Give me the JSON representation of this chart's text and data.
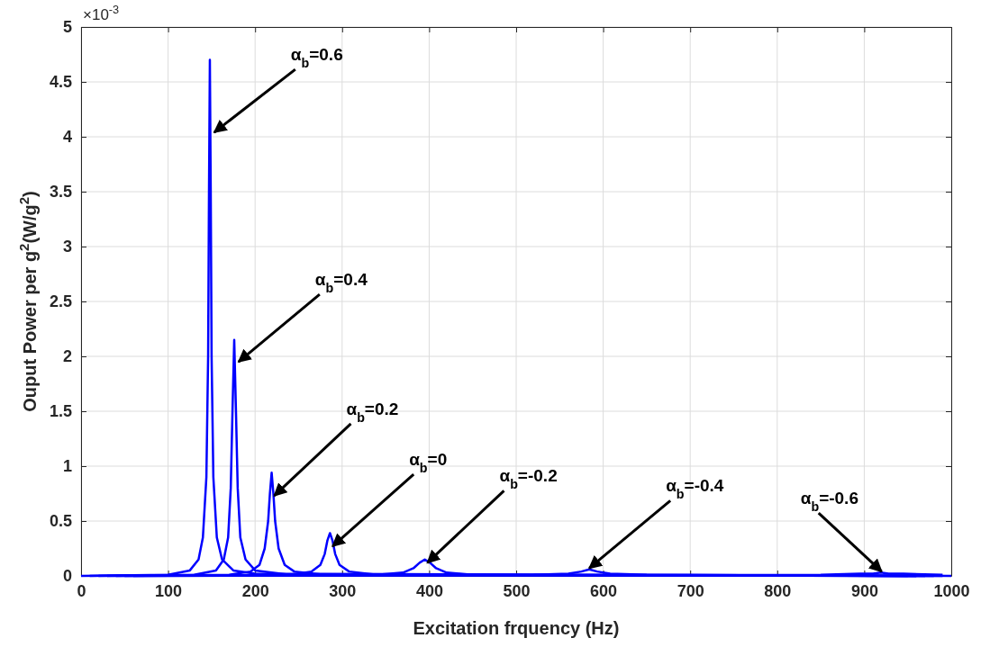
{
  "chart_data": {
    "type": "line",
    "xlabel": "Excitation frquency (Hz)",
    "ylabel": "Ouput Power per g$^{2}$(W/g$^{2}$)",
    "xlim": [
      0,
      1000
    ],
    "xticks": [
      0,
      100,
      200,
      300,
      400,
      500,
      600,
      700,
      800,
      900,
      1000
    ],
    "ylim": [
      0,
      5
    ],
    "yticks": [
      0,
      0.5,
      1,
      1.5,
      2,
      2.5,
      3,
      3.5,
      4,
      4.5,
      5
    ],
    "grid": true,
    "line_style": "solid",
    "series": [
      {
        "color": "#0000ff",
        "x": [
          0,
          100,
          125,
          135,
          140,
          144,
          146,
          147,
          148,
          149,
          150,
          152,
          156,
          162,
          175,
          200,
          1000
        ],
        "values": [
          0,
          0.01,
          0.05,
          0.15,
          0.35,
          0.9,
          2.0,
          3.5,
          4.7,
          3.5,
          2.0,
          0.9,
          0.35,
          0.15,
          0.05,
          0.02,
          0
        ]
      },
      {
        "color": "#0000ff",
        "x": [
          10,
          130,
          155,
          164,
          169,
          172,
          174,
          176,
          178,
          180,
          183,
          189,
          200,
          240,
          990
        ],
        "values": [
          0,
          0.01,
          0.05,
          0.15,
          0.35,
          0.8,
          1.5,
          2.15,
          1.5,
          0.8,
          0.35,
          0.15,
          0.05,
          0.01,
          0
        ]
      },
      {
        "color": "#0000ff",
        "x": [
          20,
          170,
          195,
          205,
          211,
          215,
          217,
          219,
          221,
          223,
          227,
          234,
          245,
          280,
          980
        ],
        "values": [
          0,
          0.01,
          0.04,
          0.1,
          0.25,
          0.5,
          0.75,
          0.94,
          0.75,
          0.5,
          0.25,
          0.1,
          0.04,
          0.01,
          0
        ]
      },
      {
        "color": "#0000ff",
        "x": [
          30,
          240,
          265,
          275,
          280,
          283,
          286,
          289,
          292,
          297,
          308,
          340,
          970
        ],
        "values": [
          0,
          0.01,
          0.04,
          0.1,
          0.2,
          0.32,
          0.39,
          0.32,
          0.2,
          0.1,
          0.04,
          0.01,
          0
        ]
      },
      {
        "color": "#0000ff",
        "x": [
          40,
          340,
          370,
          382,
          389,
          395,
          401,
          408,
          420,
          450,
          960
        ],
        "values": [
          0,
          0.01,
          0.03,
          0.07,
          0.12,
          0.15,
          0.12,
          0.07,
          0.03,
          0.01,
          0
        ]
      },
      {
        "color": "#0000ff",
        "x": [
          50,
          520,
          560,
          575,
          584,
          593,
          608,
          650,
          950
        ],
        "values": [
          0,
          0.01,
          0.02,
          0.04,
          0.06,
          0.04,
          0.02,
          0.01,
          0
        ]
      },
      {
        "color": "#0000ff",
        "x": [
          60,
          850,
          895,
          910,
          919,
          928,
          945,
          990
        ],
        "values": [
          0,
          0.01,
          0.02,
          0.02,
          0.03,
          0.02,
          0.02,
          0.01
        ]
      }
    ],
    "annotations": [
      "×10$^{-3}$",
      {
        "text": "α$_{b}$=0.6",
        "x": 153,
        "y": 4.04
      },
      {
        "text": "α$_{b}$=0.4",
        "x": 181,
        "y": 1.95
      },
      {
        "text": "α$_{b}$=0.2",
        "x": 222,
        "y": 0.73
      },
      {
        "text": "α$_{b}$=0",
        "x": 289,
        "y": 0.27
      },
      {
        "text": "α$_{b}$=-0.2",
        "x": 398,
        "y": 0.12
      },
      {
        "text": "α$_{b}$=-0.4",
        "x": 584,
        "y": 0.07
      },
      {
        "text": "α$_{b}$=-0.6",
        "x": 920,
        "y": 0.04
      }
    ]
  }
}
